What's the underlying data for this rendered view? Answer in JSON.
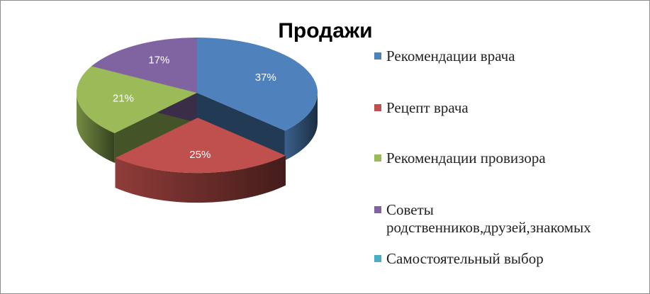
{
  "chart_data": {
    "type": "pie3d",
    "title": "Продажи",
    "categories": [
      "Рекомендации врача",
      "Рецепт врача",
      "Рекомендации провизора",
      "Советы родственников,друзей,знакомых",
      "Самостоятельный выбор"
    ],
    "values": [
      37,
      25,
      21,
      17,
      0
    ],
    "value_labels": [
      "37%",
      "25%",
      "21%",
      "17%",
      null
    ],
    "colors": [
      "#4f81bd",
      "#c0504d",
      "#9bbb59",
      "#8064a2",
      "#4bacc6"
    ],
    "legend": "right"
  }
}
